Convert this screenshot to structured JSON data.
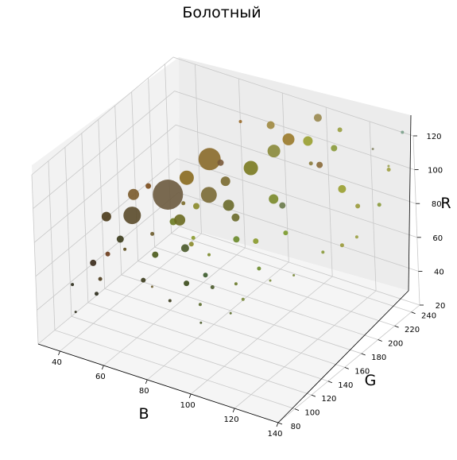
{
  "chart_data": {
    "type": "scatter",
    "title": "Болотный",
    "xlabel": "B",
    "ylabel": "G",
    "zlabel": "R",
    "xlim": [
      30,
      140
    ],
    "ylim": [
      80,
      250
    ],
    "zlim": [
      20,
      120
    ],
    "x_ticks": [
      "40",
      "60",
      "80",
      "100",
      "120",
      "140"
    ],
    "y_ticks": [
      "80",
      "100",
      "120",
      "140",
      "160",
      "180",
      "200",
      "220",
      "240"
    ],
    "z_ticks": [
      "20",
      "40",
      "60",
      "80",
      "100",
      "120"
    ],
    "grid": true,
    "colors": {
      "pane_left": "#f2f2f2",
      "pane_back": "#ececec",
      "pane_floor": "#f5f5f5",
      "grid": "#c8c8c8"
    },
    "points": [
      {
        "x": 55,
        "y": 175,
        "z": 80,
        "size": 38,
        "color": "#6b5a3e"
      },
      {
        "x": 65,
        "y": 200,
        "z": 95,
        "size": 28,
        "color": "#8a6a2a"
      },
      {
        "x": 72,
        "y": 180,
        "z": 85,
        "size": 20,
        "color": "#7a6a35"
      },
      {
        "x": 48,
        "y": 150,
        "z": 75,
        "size": 22,
        "color": "#5a4a2a"
      },
      {
        "x": 60,
        "y": 185,
        "z": 88,
        "size": 18,
        "color": "#8a6a1e"
      },
      {
        "x": 80,
        "y": 210,
        "z": 92,
        "size": 18,
        "color": "#7a7a20"
      },
      {
        "x": 85,
        "y": 225,
        "z": 98,
        "size": 16,
        "color": "#8a8a3a"
      },
      {
        "x": 75,
        "y": 195,
        "z": 74,
        "size": 14,
        "color": "#6a6a2a"
      },
      {
        "x": 90,
        "y": 230,
        "z": 105,
        "size": 15,
        "color": "#9a7a2a"
      },
      {
        "x": 45,
        "y": 160,
        "z": 82,
        "size": 14,
        "color": "#7a5a2a"
      },
      {
        "x": 62,
        "y": 170,
        "z": 70,
        "size": 14,
        "color": "#6a6a20"
      },
      {
        "x": 40,
        "y": 140,
        "z": 75,
        "size": 12,
        "color": "#4a3a1a"
      },
      {
        "x": 70,
        "y": 205,
        "z": 82,
        "size": 12,
        "color": "#7a6a30"
      },
      {
        "x": 95,
        "y": 240,
        "z": 102,
        "size": 12,
        "color": "#9aa030"
      },
      {
        "x": 88,
        "y": 215,
        "z": 75,
        "size": 12,
        "color": "#7a8a2a"
      },
      {
        "x": 78,
        "y": 195,
        "z": 68,
        "size": 10,
        "color": "#6a6a2a"
      },
      {
        "x": 110,
        "y": 240,
        "z": 80,
        "size": 10,
        "color": "#9aa030"
      },
      {
        "x": 68,
        "y": 160,
        "z": 60,
        "size": 10,
        "color": "#4a5a2a"
      },
      {
        "x": 98,
        "y": 245,
        "z": 115,
        "size": 10,
        "color": "#9a8a50"
      },
      {
        "x": 82,
        "y": 230,
        "z": 110,
        "size": 10,
        "color": "#a08a40"
      },
      {
        "x": 50,
        "y": 130,
        "z": 70,
        "size": 9,
        "color": "#3a3a1a"
      },
      {
        "x": 55,
        "y": 180,
        "z": 62,
        "size": 9,
        "color": "#6a7a20"
      },
      {
        "x": 90,
        "y": 220,
        "z": 70,
        "size": 8,
        "color": "#6a7a4a"
      },
      {
        "x": 105,
        "y": 245,
        "z": 100,
        "size": 8,
        "color": "#8a9a3a"
      },
      {
        "x": 45,
        "y": 110,
        "z": 62,
        "size": 8,
        "color": "#3a2a1a"
      },
      {
        "x": 70,
        "y": 200,
        "z": 95,
        "size": 8,
        "color": "#7a5a3a"
      },
      {
        "x": 62,
        "y": 190,
        "z": 70,
        "size": 8,
        "color": "#8a8a2a"
      },
      {
        "x": 58,
        "y": 150,
        "z": 56,
        "size": 8,
        "color": "#4a5a1a"
      },
      {
        "x": 80,
        "y": 190,
        "z": 58,
        "size": 8,
        "color": "#6a8a2a"
      },
      {
        "x": 100,
        "y": 240,
        "z": 90,
        "size": 8,
        "color": "#8a6a3a"
      },
      {
        "x": 52,
        "y": 160,
        "z": 90,
        "size": 7,
        "color": "#7a4a1a"
      },
      {
        "x": 72,
        "y": 150,
        "z": 45,
        "size": 7,
        "color": "#3a4a1a"
      },
      {
        "x": 85,
        "y": 200,
        "z": 55,
        "size": 7,
        "color": "#8a9a2a"
      },
      {
        "x": 115,
        "y": 245,
        "z": 70,
        "size": 6,
        "color": "#9a9a3a"
      },
      {
        "x": 38,
        "y": 145,
        "z": 50,
        "size": 6,
        "color": "#6a3a1a"
      },
      {
        "x": 60,
        "y": 130,
        "z": 50,
        "size": 6,
        "color": "#3a3a1a"
      },
      {
        "x": 65,
        "y": 175,
        "z": 55,
        "size": 6,
        "color": "#8a8a2a"
      },
      {
        "x": 110,
        "y": 240,
        "z": 115,
        "size": 6,
        "color": "#9aa040"
      },
      {
        "x": 95,
        "y": 210,
        "z": 60,
        "size": 6,
        "color": "#7a9a2a"
      },
      {
        "x": 75,
        "y": 165,
        "z": 45,
        "size": 6,
        "color": "#3a5a2a"
      },
      {
        "x": 125,
        "y": 245,
        "z": 75,
        "size": 5,
        "color": "#8a9a3a"
      },
      {
        "x": 50,
        "y": 100,
        "z": 50,
        "size": 5,
        "color": "#2a2a1a"
      },
      {
        "x": 80,
        "y": 160,
        "z": 42,
        "size": 5,
        "color": "#4a5a2a"
      },
      {
        "x": 115,
        "y": 225,
        "z": 55,
        "size": 5,
        "color": "#9a9a3a"
      },
      {
        "x": 90,
        "y": 190,
        "z": 45,
        "size": 5,
        "color": "#6a8a2a"
      },
      {
        "x": 60,
        "y": 180,
        "z": 75,
        "size": 5,
        "color": "#7a6a2a"
      },
      {
        "x": 100,
        "y": 230,
        "z": 95,
        "size": 5,
        "color": "#8a7a3a"
      },
      {
        "x": 128,
        "y": 250,
        "z": 95,
        "size": 5,
        "color": "#a0a040"
      },
      {
        "x": 44,
        "y": 120,
        "z": 48,
        "size": 5,
        "color": "#4a3a1a"
      },
      {
        "x": 55,
        "y": 155,
        "z": 65,
        "size": 5,
        "color": "#6a5a2a"
      },
      {
        "x": 68,
        "y": 170,
        "z": 62,
        "size": 5,
        "color": "#8a9a2a"
      },
      {
        "x": 70,
        "y": 135,
        "z": 40,
        "size": 4,
        "color": "#3a3a1a"
      },
      {
        "x": 85,
        "y": 175,
        "z": 40,
        "size": 4,
        "color": "#6a7a2a"
      },
      {
        "x": 108,
        "y": 220,
        "z": 50,
        "size": 4,
        "color": "#8a9a3a"
      },
      {
        "x": 75,
        "y": 170,
        "z": 55,
        "size": 4,
        "color": "#7a8a2a"
      },
      {
        "x": 72,
        "y": 220,
        "z": 112,
        "size": 4,
        "color": "#9a6a2a"
      },
      {
        "x": 120,
        "y": 230,
        "z": 60,
        "size": 4,
        "color": "#9aa040"
      },
      {
        "x": 35,
        "y": 110,
        "z": 45,
        "size": 4,
        "color": "#2a2a1a"
      },
      {
        "x": 90,
        "y": 170,
        "z": 35,
        "size": 4,
        "color": "#7a8a3a"
      },
      {
        "x": 135,
        "y": 250,
        "z": 120,
        "size": 4,
        "color": "#7aa08a"
      },
      {
        "x": 50,
        "y": 135,
        "z": 62,
        "size": 4,
        "color": "#5a4a1a"
      },
      {
        "x": 78,
        "y": 150,
        "z": 35,
        "size": 4,
        "color": "#5a6a2a"
      },
      {
        "x": 82,
        "y": 140,
        "z": 30,
        "size": 3,
        "color": "#4a5a2a"
      },
      {
        "x": 95,
        "y": 190,
        "z": 40,
        "size": 3,
        "color": "#7a8a3a"
      },
      {
        "x": 130,
        "y": 245,
        "z": 100,
        "size": 3,
        "color": "#9aa050"
      },
      {
        "x": 125,
        "y": 240,
        "z": 110,
        "size": 3,
        "color": "#8a8a6a"
      },
      {
        "x": 40,
        "y": 100,
        "z": 35,
        "size": 3,
        "color": "#2a2a1a"
      },
      {
        "x": 60,
        "y": 140,
        "z": 42,
        "size": 3,
        "color": "#6a5a2a"
      },
      {
        "x": 88,
        "y": 160,
        "z": 30,
        "size": 3,
        "color": "#5a6a2a"
      },
      {
        "x": 102,
        "y": 200,
        "z": 42,
        "size": 3,
        "color": "#7a8a3a"
      }
    ]
  }
}
